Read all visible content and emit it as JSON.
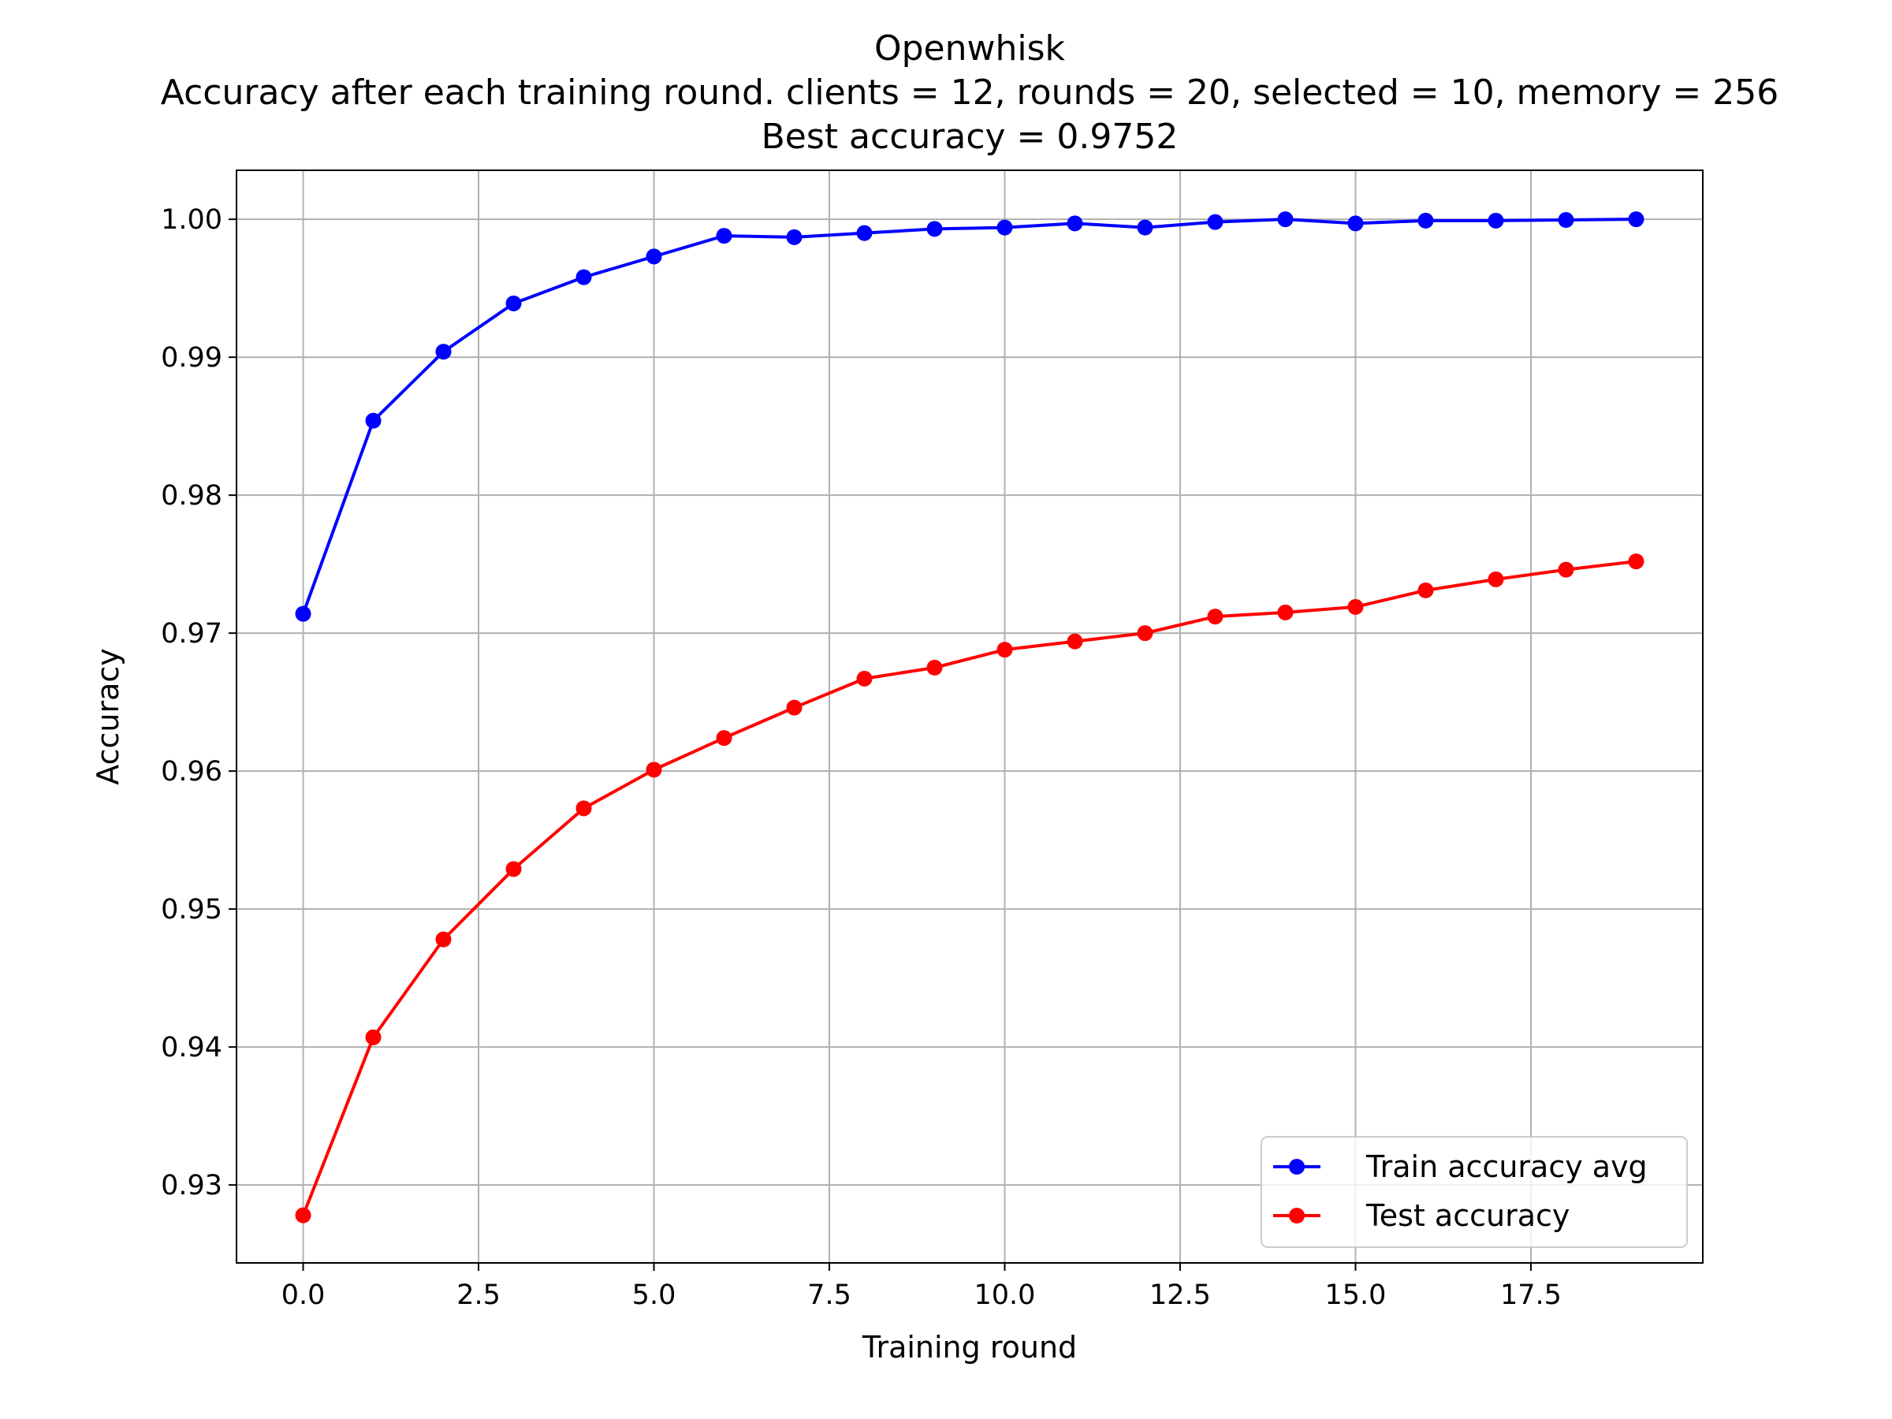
{
  "chart_data": {
    "type": "line",
    "title": [
      "Openwhisk",
      "Accuracy after each training round. clients = 12, rounds = 20, selected = 10, memory = 256",
      "Best accuracy = 0.9752"
    ],
    "xlabel": "Training round",
    "ylabel": "Accuracy",
    "xlim": [
      -0.95,
      19.95
    ],
    "ylim": [
      0.92435,
      1.00355
    ],
    "x_ticks": [
      0.0,
      2.5,
      5.0,
      7.5,
      10.0,
      12.5,
      15.0,
      17.5
    ],
    "x_tick_labels": [
      "0.0",
      "2.5",
      "5.0",
      "7.5",
      "10.0",
      "12.5",
      "15.0",
      "17.5"
    ],
    "y_ticks": [
      0.93,
      0.94,
      0.95,
      0.96,
      0.97,
      0.98,
      0.99,
      1.0
    ],
    "y_tick_labels": [
      "0.93",
      "0.94",
      "0.95",
      "0.96",
      "0.97",
      "0.98",
      "0.99",
      "1.00"
    ],
    "grid": true,
    "legend_position": "lower-right",
    "x": [
      0,
      1,
      2,
      3,
      4,
      5,
      6,
      7,
      8,
      9,
      10,
      11,
      12,
      13,
      14,
      15,
      16,
      17,
      18,
      19
    ],
    "series": [
      {
        "name": "Train accuracy avg",
        "color": "#0000ff",
        "values": [
          0.9714,
          0.9854,
          0.9904,
          0.9939,
          0.9958,
          0.9973,
          0.9988,
          0.9987,
          0.999,
          0.9993,
          0.9994,
          0.9997,
          0.9994,
          0.9998,
          1.0,
          0.9997,
          0.9999,
          0.9999,
          0.99995,
          1.0
        ]
      },
      {
        "name": "Test accuracy",
        "color": "#ff0000",
        "values": [
          0.9278,
          0.9407,
          0.9478,
          0.9529,
          0.9573,
          0.9601,
          0.9624,
          0.9646,
          0.9667,
          0.9675,
          0.9688,
          0.9694,
          0.97,
          0.9712,
          0.9715,
          0.9719,
          0.9731,
          0.9739,
          0.9746,
          0.9752
        ]
      }
    ]
  }
}
